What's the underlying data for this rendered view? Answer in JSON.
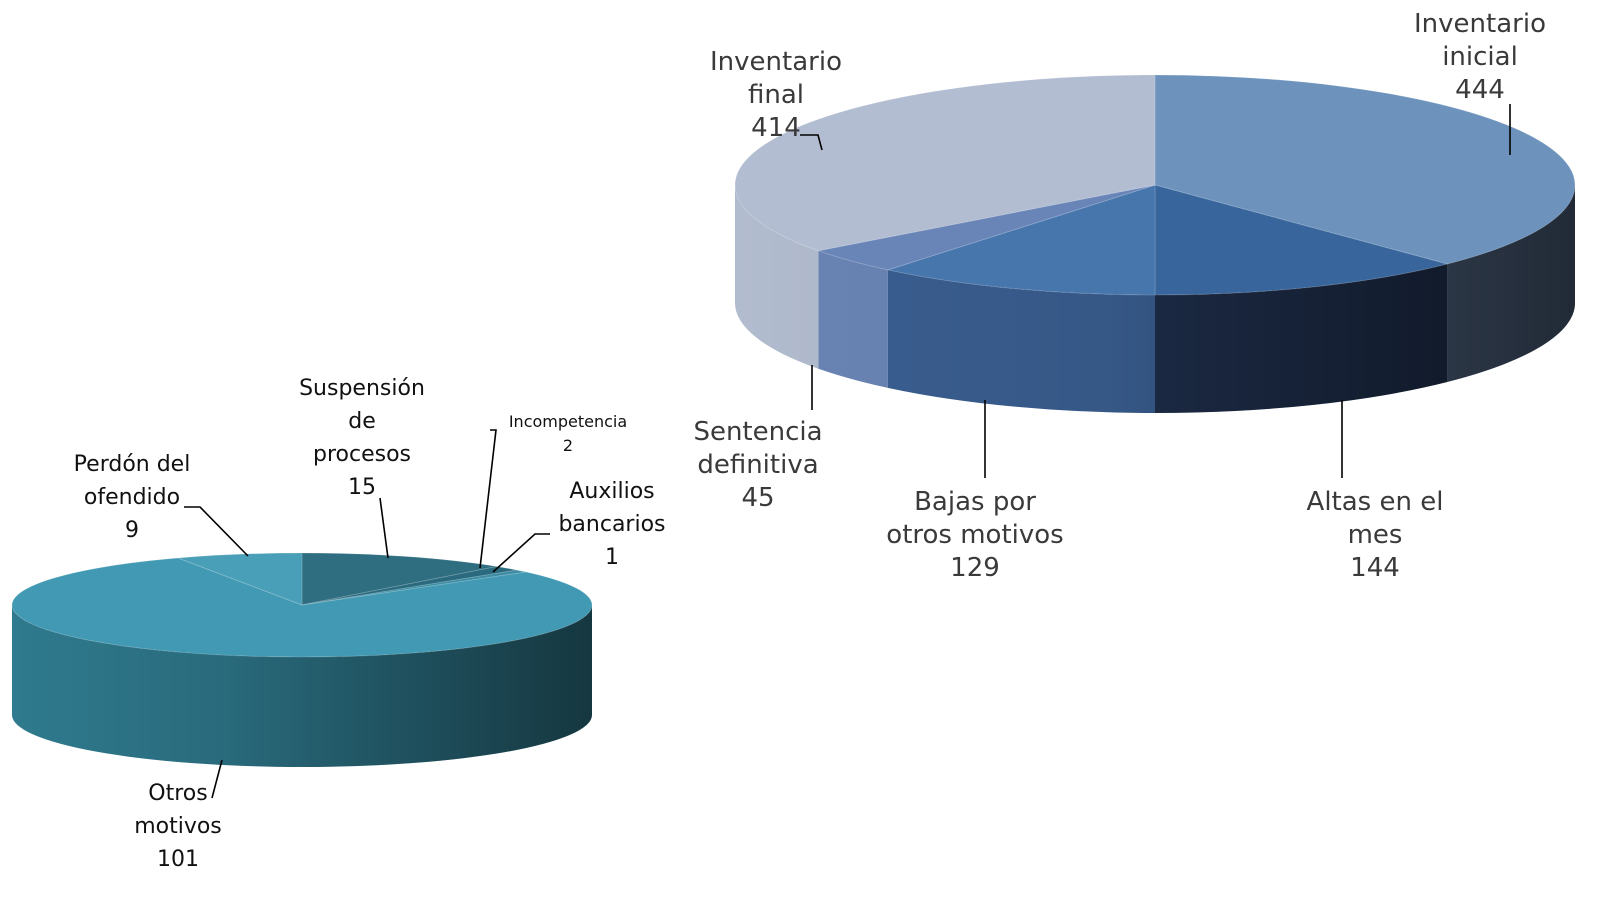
{
  "chart_data": [
    {
      "type": "pie",
      "title": "",
      "colors": {
        "top": [
          "#6d93bd",
          "#38659b",
          "#4776ad",
          "#6985b8",
          "#b3bdd2"
        ],
        "side": [
          "#4a5d78",
          "#1e2e4b",
          "#3a5f92",
          "#6a85b6",
          "#b2bccf"
        ]
      },
      "slices": [
        {
          "label_lines": [
            "Inventario",
            "inicial"
          ],
          "value": 444
        },
        {
          "label_lines": [
            "Altas en el",
            "mes"
          ],
          "value": 144
        },
        {
          "label_lines": [
            "Bajas por",
            "otros motivos"
          ],
          "value": 129
        },
        {
          "label_lines": [
            "Sentencia",
            "definitiva"
          ],
          "value": 45
        },
        {
          "label_lines": [
            "Inventario",
            "final"
          ],
          "value": 414
        }
      ]
    },
    {
      "type": "pie",
      "title": "",
      "colors": {
        "top": [
          "#2f6e80",
          "#2a6a7e",
          "#3a8ba3",
          "#4299b3",
          "#4a9fb8"
        ],
        "side": [
          "#1f4a56",
          "#1f4a56",
          "#2c6e80",
          "#2f7a8e",
          "#3a8ca5"
        ]
      },
      "slices": [
        {
          "label_lines": [
            "Suspensión",
            "de",
            "procesos"
          ],
          "value": 15
        },
        {
          "label_lines": [
            "Incompetencia"
          ],
          "value": 2
        },
        {
          "label_lines": [
            "Auxilios",
            "bancarios"
          ],
          "value": 1
        },
        {
          "label_lines": [
            "Otros",
            "motivos"
          ],
          "value": 101
        },
        {
          "label_lines": [
            "Perdón del",
            "ofendido"
          ],
          "value": 9
        }
      ]
    }
  ]
}
